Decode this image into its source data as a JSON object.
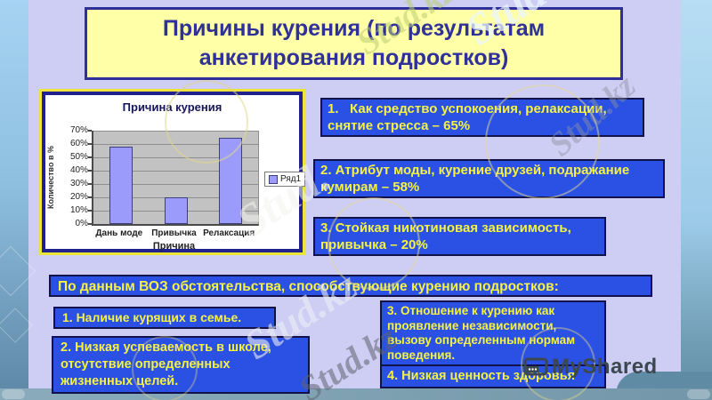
{
  "slide": {
    "title": "Причины курения (по результатам\nанкетирования подростков)"
  },
  "chart_data": {
    "type": "bar",
    "title": "Причина курения",
    "categories": [
      "Дань моде",
      "Привычка",
      "Релаксация"
    ],
    "values": [
      58,
      20,
      65
    ],
    "series": [
      {
        "name": "Ряд1",
        "values": [
          58,
          20,
          65
        ]
      }
    ],
    "xlabel": "Причина",
    "ylabel": "Количество в %",
    "yticks": [
      "70%",
      "60%",
      "50%",
      "40%",
      "30%",
      "20%",
      "10%",
      "0%"
    ],
    "ylim": [
      0,
      70
    ],
    "legend": [
      "Ряд1"
    ],
    "legend_position": "right",
    "grid": "horizontal",
    "bar_color": "#9b9bfc",
    "plot_bg": "#c2c2c2"
  },
  "reasons": [
    {
      "text": "1.   Как средство успокоения, релаксации, снятие стресса – 65%"
    },
    {
      "text": "2. Атрибут моды, курение друзей, подражание кумирам – 58%"
    },
    {
      "text": "3. Стойкая никотиновая зависимость, привычка – 20%"
    }
  ],
  "who_header": "По данным ВОЗ обстоятельства, способствующие курению подростков:",
  "factors": [
    {
      "text": "1. Наличие курящих в семье."
    },
    {
      "text": "2. Низкая успеваемость в школе, отсутствие определенных жизненных целей."
    },
    {
      "text": "3. Отношение к курению как проявление независимости, вызову определенным нормам поведения."
    },
    {
      "text": "4. Низкая ценность здоровья"
    }
  ],
  "watermarks": [
    "Stud.kz",
    "Stud.",
    "Stud.kz",
    "Stud.",
    "Stud.kz",
    "Stud.kz"
  ],
  "logo": {
    "text": "MyShared"
  },
  "colors": {
    "slide_bg": "#cecdf4",
    "title_bg": "#ffffa8",
    "title_text": "#2f3098",
    "box_bg": "#2a51e3",
    "box_text": "#f5f243",
    "bar_fill": "#9b9bfc"
  }
}
